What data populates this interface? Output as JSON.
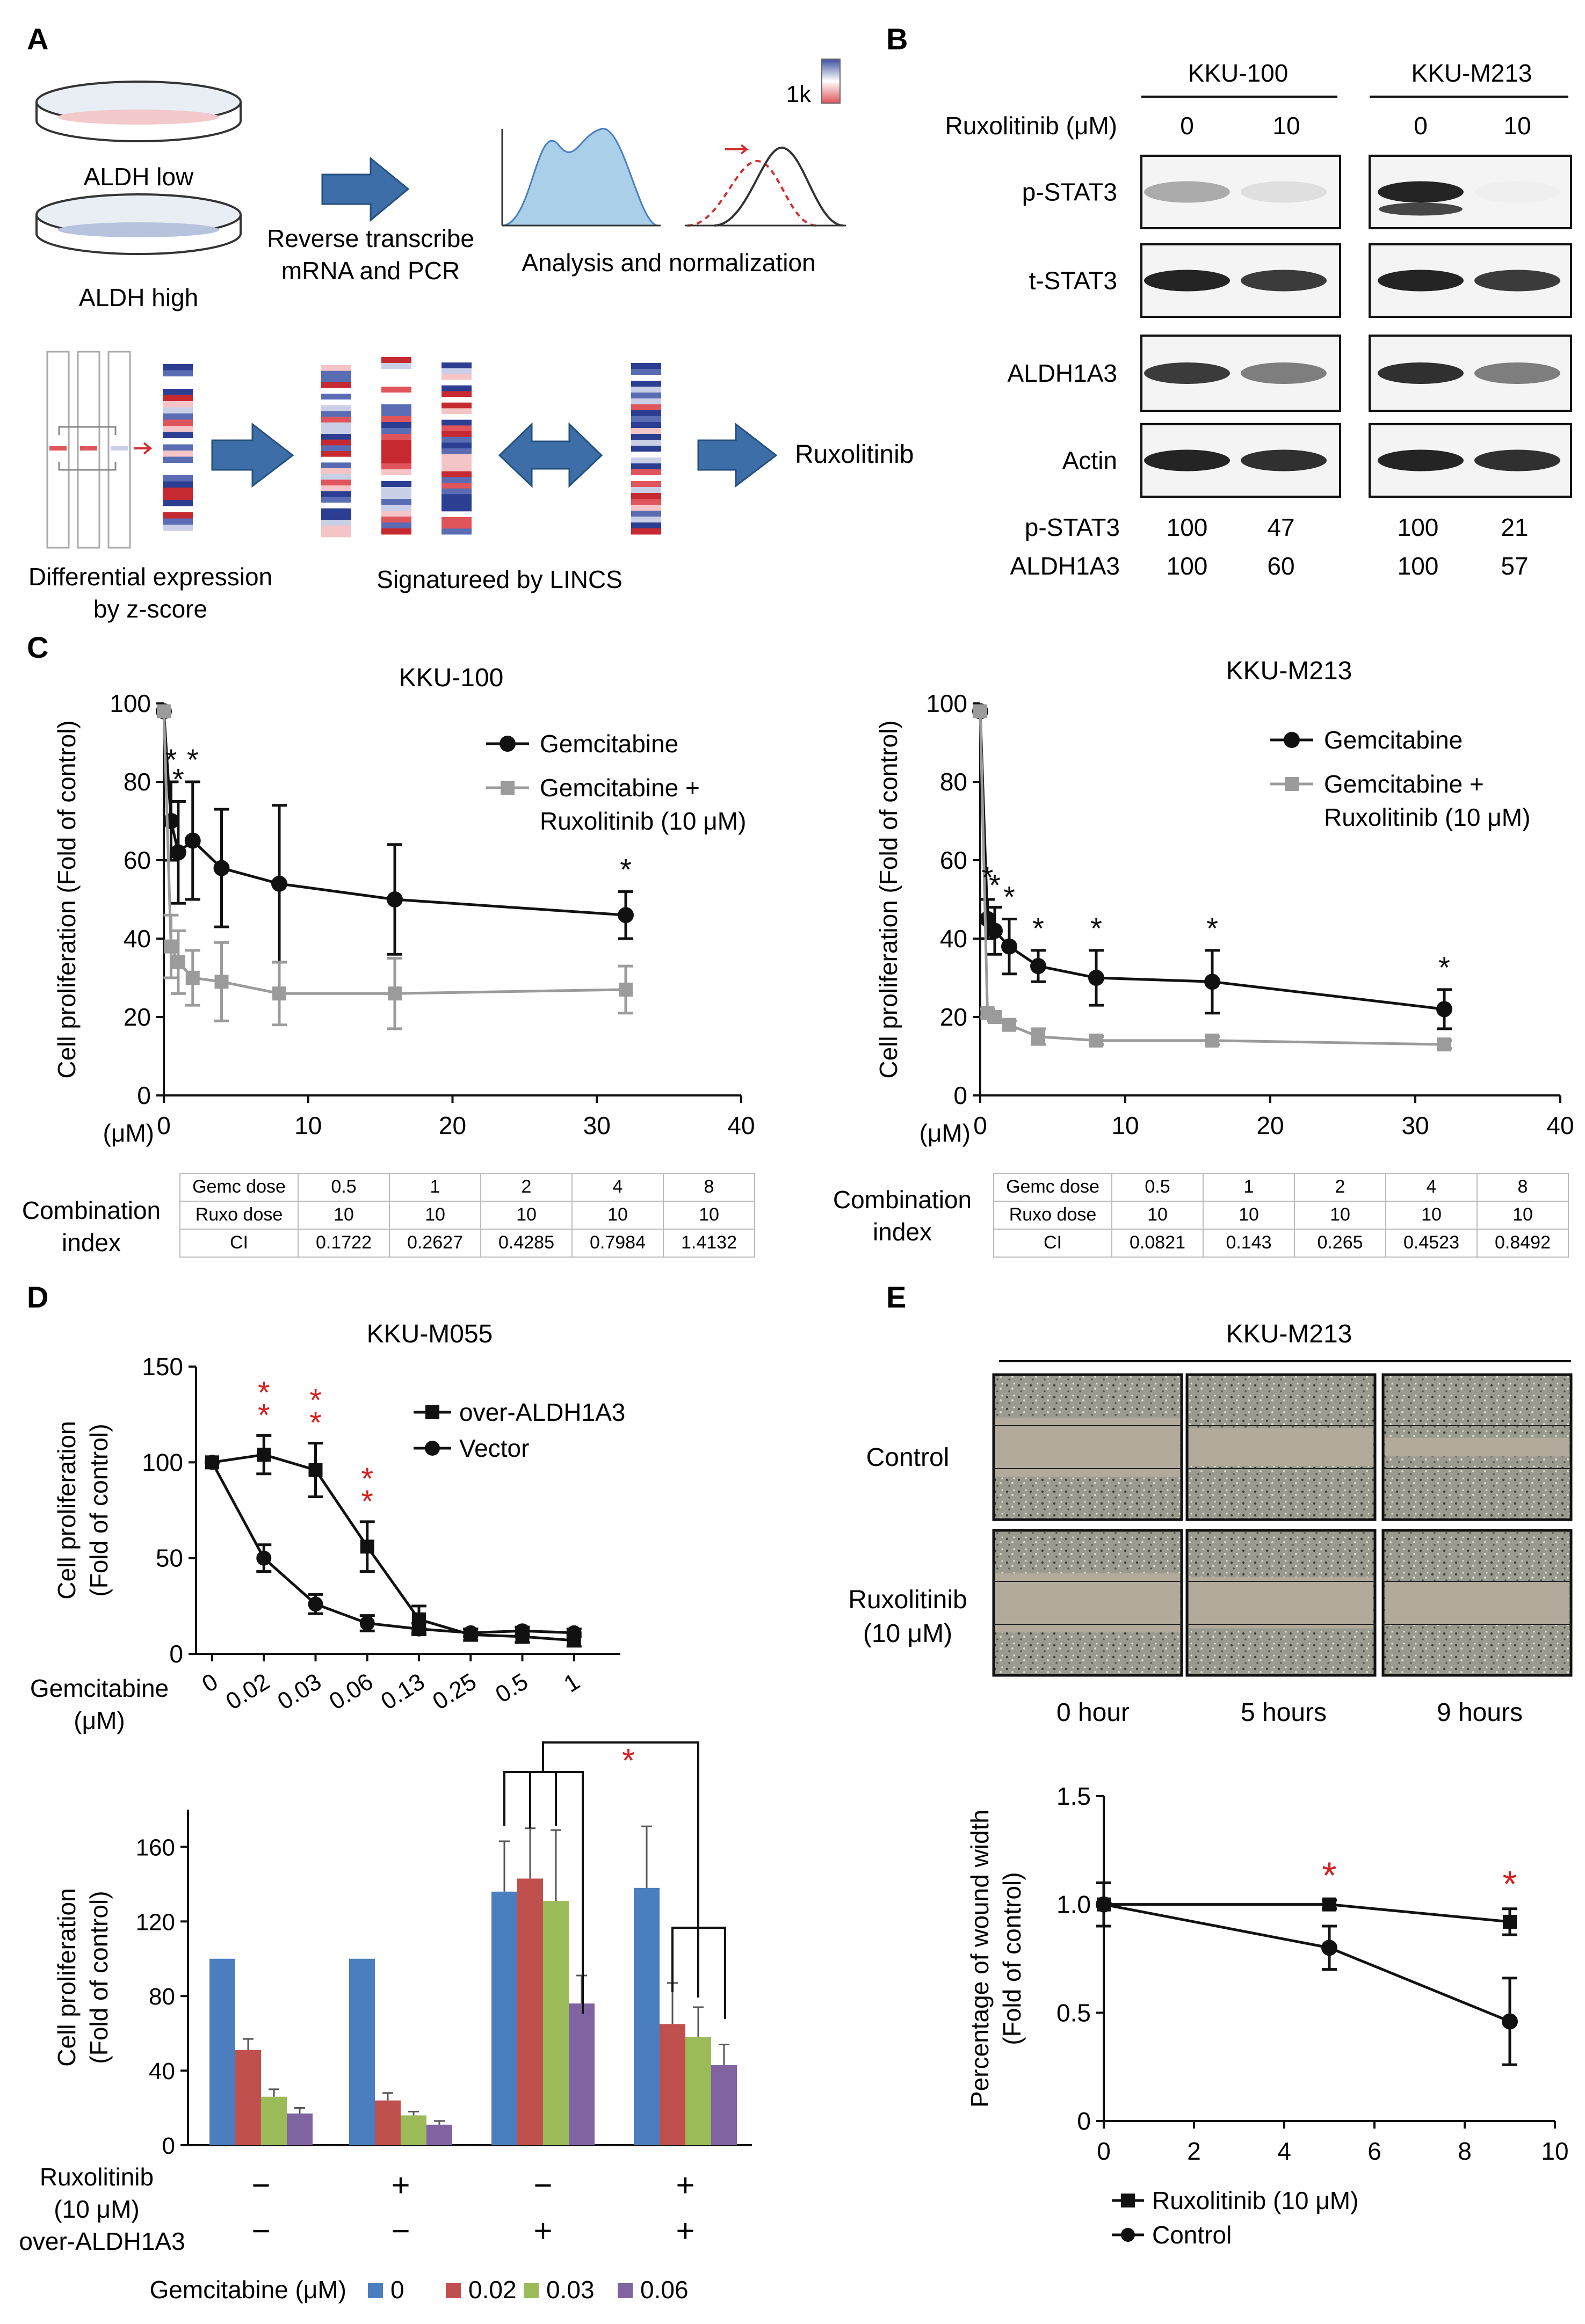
{
  "panelA": {
    "label": "A",
    "low": "ALDH low",
    "high": "ALDH high",
    "step1": [
      "Reverse transcribe",
      "mRNA and PCR"
    ],
    "step2": "Analysis and normalization",
    "k": "1k",
    "diff": [
      "Differential expression",
      "by z-score"
    ],
    "lincs": "Signatureed by LINCS",
    "drug": "Ruxolitinib"
  },
  "panelB": {
    "label": "B",
    "lines": [
      "KKU-100",
      "KKU-M213"
    ],
    "treat": "Ruxolitinib (μM)",
    "doses": [
      "0",
      "10",
      "0",
      "10"
    ],
    "bands": [
      "p-STAT3",
      "t-STAT3",
      "ALDH1A3",
      "Actin"
    ],
    "quant": [
      {
        "name": "p-STAT3",
        "vals": [
          "100",
          "47",
          "100",
          "21"
        ]
      },
      {
        "name": "ALDH1A3",
        "vals": [
          "100",
          "60",
          "100",
          "57"
        ]
      }
    ]
  },
  "panelC": {
    "label": "C",
    "ylabel": "Cell proliferation (Fold of control)",
    "unit": "(μM)",
    "legend": [
      "Gemcitabine",
      "Gemcitabine +",
      "Ruxolitinib (10 μM)"
    ],
    "ci_label": [
      "Combination",
      "index"
    ],
    "ci_rows": [
      "Gemc dose",
      "Ruxo dose",
      "CI"
    ]
  },
  "panelD": {
    "label": "D",
    "ylabel_line": [
      "Cell proliferation",
      "(Fold of control)"
    ],
    "xlabel_line": [
      "Gemcitabine",
      "(μM)"
    ],
    "ylabel_bar": [
      "Cell proliferation",
      "(Fold of control)"
    ],
    "row_labels": [
      "Ruxolitinib",
      "(10 μM)",
      "over-ALDH1A3"
    ],
    "rux_signs": [
      "−",
      "+",
      "−",
      "+"
    ],
    "aldh_signs": [
      "−",
      "−",
      "+",
      "+"
    ],
    "legend_title": "Gemcitabine (μM)",
    "legend": [
      "0",
      "0.02",
      "0.03",
      "0.06"
    ]
  },
  "panelE": {
    "label": "E",
    "title": "KKU-M213",
    "rows": [
      "Control",
      "Ruxolitinib",
      "(10 μM)"
    ],
    "times": [
      "0 hour",
      "5 hours",
      "9 hours"
    ],
    "ylabel": [
      "Percentage of wound width",
      "(Fold of control)"
    ],
    "legend": [
      "Ruxolitinib (10 μM)",
      "Control"
    ]
  },
  "chart_data": [
    {
      "id": "C-KKU-100",
      "type": "line",
      "title": "KKU-100",
      "xlabel": "(μM)",
      "ylabel": "Cell proliferation (Fold of control)",
      "xlim": [
        0,
        40
      ],
      "ylim": [
        0,
        100
      ],
      "xticks": [
        0,
        10,
        20,
        30,
        40
      ],
      "yticks": [
        0,
        20,
        40,
        60,
        80,
        100
      ],
      "series": [
        {
          "name": "Gemcitabine",
          "x": [
            0,
            0.5,
            1,
            2,
            4,
            8,
            16,
            32
          ],
          "y": [
            98,
            70,
            62,
            65,
            58,
            54,
            50,
            46
          ],
          "err": [
            0,
            10,
            13,
            15,
            15,
            20,
            14,
            6
          ]
        },
        {
          "name": "Gemcitabine + Ruxolitinib (10 μM)",
          "x": [
            0,
            0.5,
            1,
            2,
            4,
            8,
            16,
            32
          ],
          "y": [
            98,
            38,
            34,
            30,
            29,
            26,
            26,
            27
          ],
          "err": [
            0,
            8,
            8,
            7,
            10,
            8,
            9,
            6
          ]
        }
      ],
      "annotations": [
        {
          "x": 0.5,
          "text": "*"
        },
        {
          "x": 1,
          "text": "*"
        },
        {
          "x": 2,
          "text": "*"
        },
        {
          "x": 32,
          "text": "*"
        }
      ],
      "table": {
        "Gemc dose": [
          "0.5",
          "1",
          "2",
          "4",
          "8"
        ],
        "Ruxo dose": [
          "10",
          "10",
          "10",
          "10",
          "10"
        ],
        "CI": [
          "0.1722",
          "0.2627",
          "0.4285",
          "0.7984",
          "1.4132"
        ]
      }
    },
    {
      "id": "C-KKU-M213",
      "type": "line",
      "title": "KKU-M213",
      "xlabel": "(μM)",
      "ylabel": "Cell proliferation (Fold of control)",
      "xlim": [
        0,
        40
      ],
      "ylim": [
        0,
        100
      ],
      "xticks": [
        0,
        10,
        20,
        30,
        40
      ],
      "yticks": [
        0,
        20,
        40,
        60,
        80,
        100
      ],
      "series": [
        {
          "name": "Gemcitabine",
          "x": [
            0,
            0.5,
            1,
            2,
            4,
            8,
            16,
            32
          ],
          "y": [
            98,
            45,
            42,
            38,
            33,
            30,
            29,
            22
          ],
          "err": [
            0,
            5,
            6,
            7,
            4,
            7,
            8,
            5
          ]
        },
        {
          "name": "Gemcitabine + Ruxolitinib (10 μM)",
          "x": [
            0,
            0.5,
            1,
            2,
            4,
            8,
            16,
            32
          ],
          "y": [
            98,
            21,
            20,
            18,
            15,
            14,
            14,
            13
          ],
          "err": [
            0,
            1,
            1,
            1,
            2,
            1,
            1,
            1
          ]
        }
      ],
      "annotations": [
        {
          "x": 0.5,
          "text": "*"
        },
        {
          "x": 1,
          "text": "*"
        },
        {
          "x": 2,
          "text": "*"
        },
        {
          "x": 4,
          "text": "*"
        },
        {
          "x": 8,
          "text": "*"
        },
        {
          "x": 16,
          "text": "*"
        },
        {
          "x": 32,
          "text": "*"
        }
      ],
      "table": {
        "Gemc dose": [
          "0.5",
          "1",
          "2",
          "4",
          "8"
        ],
        "Ruxo dose": [
          "10",
          "10",
          "10",
          "10",
          "10"
        ],
        "CI": [
          "0.0821",
          "0.143",
          "0.265",
          "0.4523",
          "0.8492"
        ]
      }
    },
    {
      "id": "D-line",
      "type": "line",
      "title": "KKU-M055",
      "xlabel": "Gemcitabine (μM)",
      "ylabel": "Cell proliferation (Fold of control)",
      "categories": [
        "0",
        "0.02",
        "0.03",
        "0.06",
        "0.13",
        "0.25",
        "0.5",
        "1"
      ],
      "ylim": [
        0,
        150
      ],
      "yticks": [
        0,
        50,
        100,
        150
      ],
      "series": [
        {
          "name": "over-ALDH1A3",
          "y": [
            100,
            104,
            96,
            56,
            18,
            10,
            9,
            7
          ],
          "err": [
            0,
            10,
            14,
            13,
            7,
            3,
            3,
            3
          ]
        },
        {
          "name": "Vector",
          "y": [
            100,
            50,
            26,
            16,
            13,
            11,
            12,
            11
          ],
          "err": [
            0,
            7,
            5,
            4,
            3,
            2,
            2,
            2
          ]
        }
      ],
      "annotations": [
        {
          "category": "0.02",
          "text": "**"
        },
        {
          "category": "0.03",
          "text": "**"
        },
        {
          "category": "0.06",
          "text": "**"
        }
      ]
    },
    {
      "id": "D-bar",
      "type": "bar",
      "ylabel": "Cell proliferation (Fold of control)",
      "ylim": [
        0,
        180
      ],
      "yticks": [
        0,
        40,
        80,
        120,
        160
      ],
      "groups": [
        "Rux − / over-ALDH1A3 −",
        "Rux + / over-ALDH1A3 −",
        "Rux − / over-ALDH1A3 +",
        "Rux + / over-ALDH1A3 +"
      ],
      "series": [
        {
          "name": "0",
          "color": "#4a7ebf",
          "values": [
            100,
            100,
            136,
            138
          ],
          "err": [
            0,
            0,
            27,
            33
          ]
        },
        {
          "name": "0.02",
          "color": "#c0504d",
          "values": [
            51,
            24,
            143,
            65
          ],
          "err": [
            6,
            4,
            27,
            22
          ]
        },
        {
          "name": "0.03",
          "color": "#9bbb59",
          "values": [
            26,
            16,
            131,
            58
          ],
          "err": [
            4,
            2,
            38,
            16
          ]
        },
        {
          "name": "0.06",
          "color": "#8064a2",
          "values": [
            17,
            11,
            76,
            43
          ],
          "err": [
            3,
            2,
            15,
            11
          ]
        }
      ],
      "annotations": [
        {
          "text": "*"
        }
      ]
    },
    {
      "id": "E-line",
      "type": "line",
      "ylabel": "Percentage of wound width (Fold of control)",
      "xlim": [
        0,
        10
      ],
      "ylim": [
        0,
        1.5
      ],
      "xticks": [
        0,
        2,
        4,
        6,
        8,
        10
      ],
      "yticks": [
        0,
        0.5,
        1.0,
        1.5
      ],
      "ytick_labels": [
        "0",
        "0.5",
        "1.0",
        "1.5"
      ],
      "series": [
        {
          "name": "Ruxolitinib (10 μM)",
          "x": [
            0,
            5,
            9
          ],
          "y": [
            1.0,
            1.0,
            0.92
          ],
          "err": [
            0.1,
            0.02,
            0.06
          ]
        },
        {
          "name": "Control",
          "x": [
            0,
            5,
            9
          ],
          "y": [
            1.0,
            0.8,
            0.46
          ],
          "err": [
            0.1,
            0.1,
            0.2
          ]
        }
      ],
      "annotations": [
        {
          "x": 5,
          "text": "*"
        },
        {
          "x": 9,
          "text": "*"
        }
      ]
    }
  ]
}
